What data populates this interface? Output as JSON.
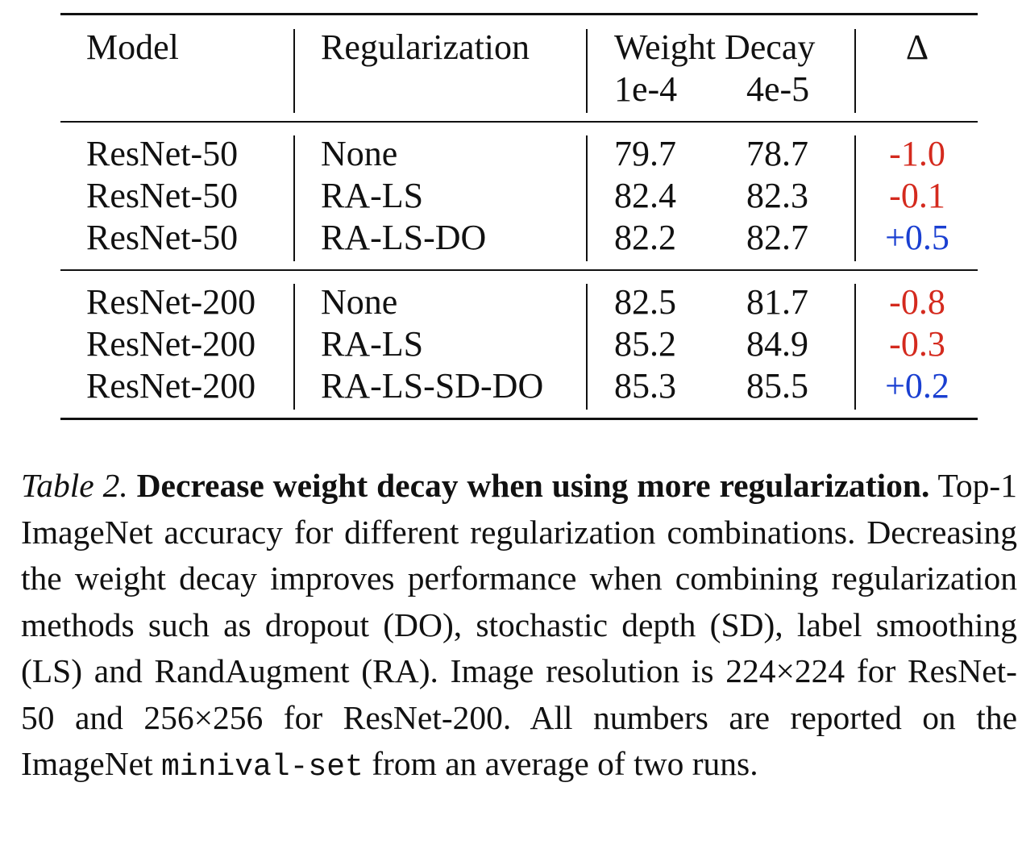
{
  "table": {
    "headers": {
      "model": "Model",
      "regularization": "Regularization",
      "weight_decay": "Weight Decay",
      "wd_1": "1e-4",
      "wd_2": "4e-5",
      "delta": "Δ"
    },
    "rows": [
      {
        "model": "ResNet-50",
        "reg": "None",
        "wd1": "79.7",
        "wd2": "78.7",
        "delta": "-1.0",
        "sign": "neg"
      },
      {
        "model": "ResNet-50",
        "reg": "RA-LS",
        "wd1": "82.4",
        "wd2": "82.3",
        "delta": "-0.1",
        "sign": "neg"
      },
      {
        "model": "ResNet-50",
        "reg": "RA-LS-DO",
        "wd1": "82.2",
        "wd2": "82.7",
        "delta": "+0.5",
        "sign": "pos"
      },
      {
        "model": "ResNet-200",
        "reg": "None",
        "wd1": "82.5",
        "wd2": "81.7",
        "delta": "-0.8",
        "sign": "neg"
      },
      {
        "model": "ResNet-200",
        "reg": "RA-LS",
        "wd1": "85.2",
        "wd2": "84.9",
        "delta": "-0.3",
        "sign": "neg"
      },
      {
        "model": "ResNet-200",
        "reg": "RA-LS-SD-DO",
        "wd1": "85.3",
        "wd2": "85.5",
        "delta": "+0.2",
        "sign": "pos"
      }
    ]
  },
  "caption": {
    "label": "Table 2.",
    "title": "Decrease weight decay when using more regulariza­tion.",
    "body": "Top-1 ImageNet accuracy for different regularization com­binations. Decreasing the weight decay improves performance when combining regularization methods such as dropout (DO), stochastic depth (SD), label smoothing (LS) and RandAugment (RA). Image resolution is 224×224 for ResNet-50 and 256×256 for ResNet-200. All numbers are reported on the ImageNet",
    "code": "minival-set",
    "tail": "from an average of two runs."
  },
  "colors": {
    "negative": "#d42a1e",
    "positive": "#1a3fd1"
  }
}
